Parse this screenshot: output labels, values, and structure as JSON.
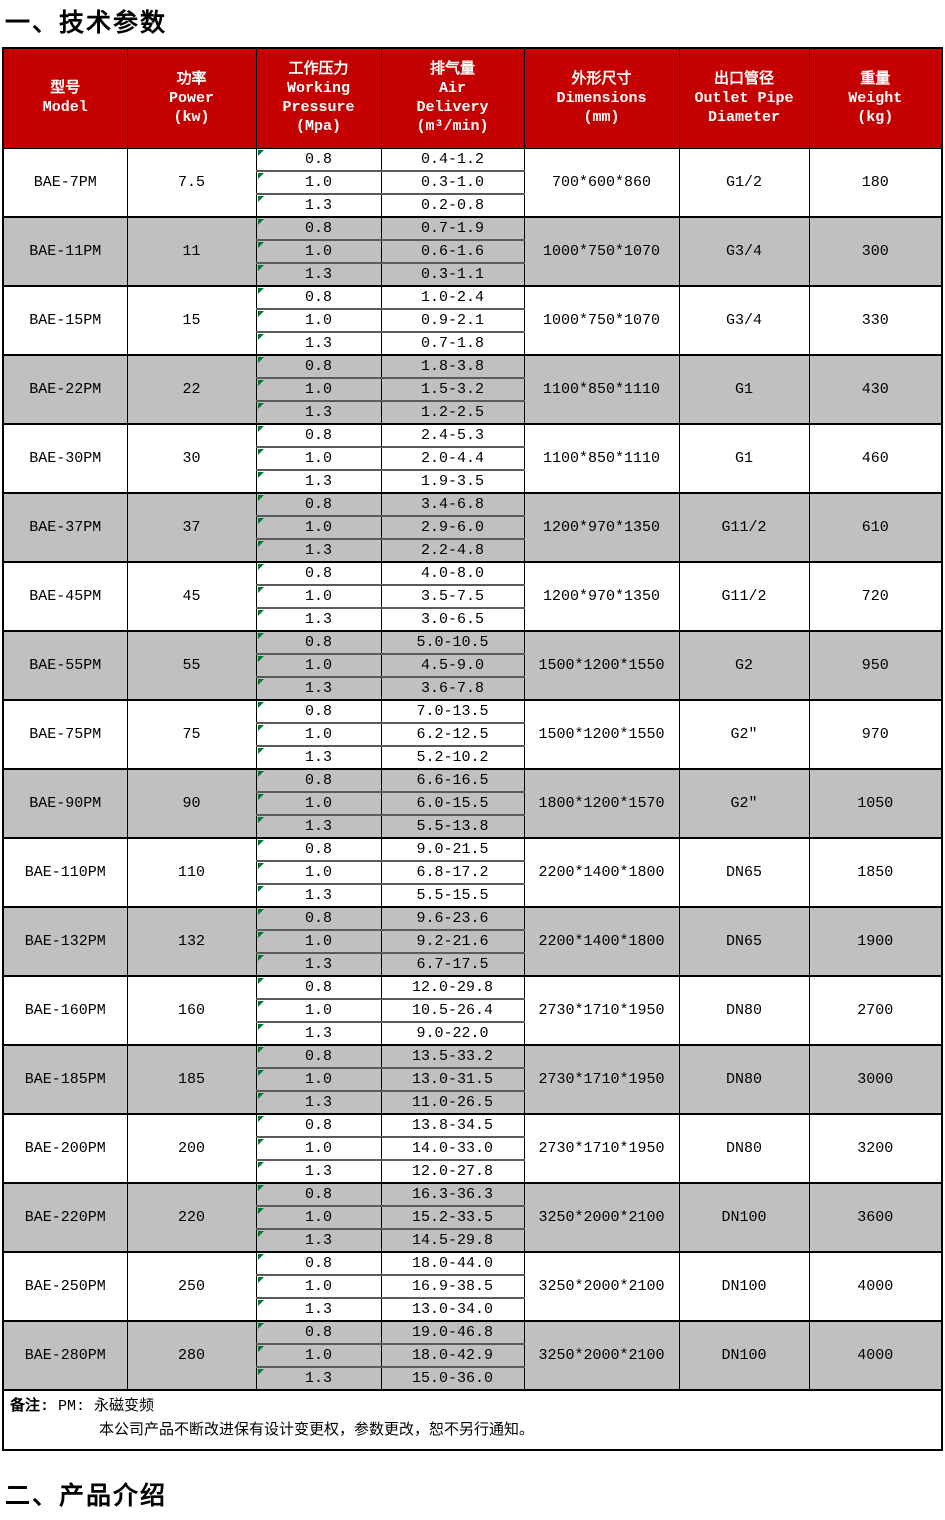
{
  "page": {
    "section1_title": "一、技术参数",
    "section2_title": "二、产品介绍"
  },
  "colors": {
    "header_bg": "#C40000",
    "header_text": "#FFFFFF",
    "alt_row_bg": "#C0C0C0",
    "marker_green": "#007A33",
    "border": "#000000"
  },
  "table": {
    "columns": [
      {
        "id": "model",
        "lines": [
          "型号",
          "Model"
        ]
      },
      {
        "id": "power",
        "lines": [
          "功率",
          "Power",
          "(kw)"
        ]
      },
      {
        "id": "pressure",
        "lines": [
          "工作压力",
          "Working",
          "Pressure",
          "(Mpa)"
        ]
      },
      {
        "id": "air",
        "lines": [
          "排气量",
          "Air",
          "Delivery",
          "(m³/min)"
        ]
      },
      {
        "id": "dimensions",
        "lines": [
          "外形尺寸",
          "Dimensions",
          "(mm)"
        ]
      },
      {
        "id": "outlet",
        "lines": [
          "出口管径",
          "Outlet Pipe",
          "Diameter"
        ]
      },
      {
        "id": "weight",
        "lines": [
          "重量",
          "Weight",
          "(kg)"
        ]
      }
    ],
    "rows": [
      {
        "model": "BAE-7PM",
        "power": "7.5",
        "dimensions": "700*600*860",
        "outlet": "G1/2",
        "weight": "180",
        "sub": [
          {
            "pressure": "0.8",
            "air": "0.4-1.2"
          },
          {
            "pressure": "1.0",
            "air": "0.3-1.0"
          },
          {
            "pressure": "1.3",
            "air": "0.2-0.8"
          }
        ]
      },
      {
        "model": "BAE-11PM",
        "power": "11",
        "dimensions": "1000*750*1070",
        "outlet": "G3/4",
        "weight": "300",
        "sub": [
          {
            "pressure": "0.8",
            "air": "0.7-1.9"
          },
          {
            "pressure": "1.0",
            "air": "0.6-1.6"
          },
          {
            "pressure": "1.3",
            "air": "0.3-1.1"
          }
        ]
      },
      {
        "model": "BAE-15PM",
        "power": "15",
        "dimensions": "1000*750*1070",
        "outlet": "G3/4",
        "weight": "330",
        "sub": [
          {
            "pressure": "0.8",
            "air": "1.0-2.4"
          },
          {
            "pressure": "1.0",
            "air": "0.9-2.1"
          },
          {
            "pressure": "1.3",
            "air": "0.7-1.8"
          }
        ]
      },
      {
        "model": "BAE-22PM",
        "power": "22",
        "dimensions": "1100*850*1110",
        "outlet": "G1",
        "weight": "430",
        "sub": [
          {
            "pressure": "0.8",
            "air": "1.8-3.8"
          },
          {
            "pressure": "1.0",
            "air": "1.5-3.2"
          },
          {
            "pressure": "1.3",
            "air": "1.2-2.5"
          }
        ]
      },
      {
        "model": "BAE-30PM",
        "power": "30",
        "dimensions": "1100*850*1110",
        "outlet": "G1",
        "weight": "460",
        "sub": [
          {
            "pressure": "0.8",
            "air": "2.4-5.3"
          },
          {
            "pressure": "1.0",
            "air": "2.0-4.4"
          },
          {
            "pressure": "1.3",
            "air": "1.9-3.5"
          }
        ]
      },
      {
        "model": "BAE-37PM",
        "power": "37",
        "dimensions": "1200*970*1350",
        "outlet": "G11/2",
        "weight": "610",
        "sub": [
          {
            "pressure": "0.8",
            "air": "3.4-6.8"
          },
          {
            "pressure": "1.0",
            "air": "2.9-6.0"
          },
          {
            "pressure": "1.3",
            "air": "2.2-4.8"
          }
        ]
      },
      {
        "model": "BAE-45PM",
        "power": "45",
        "dimensions": "1200*970*1350",
        "outlet": "G11/2",
        "weight": "720",
        "sub": [
          {
            "pressure": "0.8",
            "air": "4.0-8.0"
          },
          {
            "pressure": "1.0",
            "air": "3.5-7.5"
          },
          {
            "pressure": "1.3",
            "air": "3.0-6.5"
          }
        ]
      },
      {
        "model": "BAE-55PM",
        "power": "55",
        "dimensions": "1500*1200*1550",
        "outlet": "G2",
        "weight": "950",
        "sub": [
          {
            "pressure": "0.8",
            "air": "5.0-10.5"
          },
          {
            "pressure": "1.0",
            "air": "4.5-9.0"
          },
          {
            "pressure": "1.3",
            "air": "3.6-7.8"
          }
        ]
      },
      {
        "model": "BAE-75PM",
        "power": "75",
        "dimensions": "1500*1200*1550",
        "outlet": "G2″",
        "weight": "970",
        "sub": [
          {
            "pressure": "0.8",
            "air": "7.0-13.5"
          },
          {
            "pressure": "1.0",
            "air": "6.2-12.5"
          },
          {
            "pressure": "1.3",
            "air": "5.2-10.2"
          }
        ]
      },
      {
        "model": "BAE-90PM",
        "power": "90",
        "dimensions": "1800*1200*1570",
        "outlet": "G2″",
        "weight": "1050",
        "sub": [
          {
            "pressure": "0.8",
            "air": "6.6-16.5"
          },
          {
            "pressure": "1.0",
            "air": "6.0-15.5"
          },
          {
            "pressure": "1.3",
            "air": "5.5-13.8"
          }
        ]
      },
      {
        "model": "BAE-110PM",
        "power": "110",
        "dimensions": "2200*1400*1800",
        "outlet": "DN65",
        "weight": "1850",
        "sub": [
          {
            "pressure": "0.8",
            "air": "9.0-21.5"
          },
          {
            "pressure": "1.0",
            "air": "6.8-17.2"
          },
          {
            "pressure": "1.3",
            "air": "5.5-15.5"
          }
        ]
      },
      {
        "model": "BAE-132PM",
        "power": "132",
        "dimensions": "2200*1400*1800",
        "outlet": "DN65",
        "weight": "1900",
        "sub": [
          {
            "pressure": "0.8",
            "air": "9.6-23.6"
          },
          {
            "pressure": "1.0",
            "air": "9.2-21.6"
          },
          {
            "pressure": "1.3",
            "air": "6.7-17.5"
          }
        ]
      },
      {
        "model": "BAE-160PM",
        "power": "160",
        "dimensions": "2730*1710*1950",
        "outlet": "DN80",
        "weight": "2700",
        "sub": [
          {
            "pressure": "0.8",
            "air": "12.0-29.8"
          },
          {
            "pressure": "1.0",
            "air": "10.5-26.4"
          },
          {
            "pressure": "1.3",
            "air": "9.0-22.0"
          }
        ]
      },
      {
        "model": "BAE-185PM",
        "power": "185",
        "dimensions": "2730*1710*1950",
        "outlet": "DN80",
        "weight": "3000",
        "sub": [
          {
            "pressure": "0.8",
            "air": "13.5-33.2"
          },
          {
            "pressure": "1.0",
            "air": "13.0-31.5"
          },
          {
            "pressure": "1.3",
            "air": "11.0-26.5"
          }
        ]
      },
      {
        "model": "BAE-200PM",
        "power": "200",
        "dimensions": "2730*1710*1950",
        "outlet": "DN80",
        "weight": "3200",
        "sub": [
          {
            "pressure": "0.8",
            "air": "13.8-34.5"
          },
          {
            "pressure": "1.0",
            "air": "14.0-33.0"
          },
          {
            "pressure": "1.3",
            "air": "12.0-27.8"
          }
        ]
      },
      {
        "model": "BAE-220PM",
        "power": "220",
        "dimensions": "3250*2000*2100",
        "outlet": "DN100",
        "weight": "3600",
        "sub": [
          {
            "pressure": "0.8",
            "air": "16.3-36.3"
          },
          {
            "pressure": "1.0",
            "air": "15.2-33.5"
          },
          {
            "pressure": "1.3",
            "air": "14.5-29.8"
          }
        ]
      },
      {
        "model": "BAE-250PM",
        "power": "250",
        "dimensions": "3250*2000*2100",
        "outlet": "DN100",
        "weight": "4000",
        "sub": [
          {
            "pressure": "0.8",
            "air": "18.0-44.0"
          },
          {
            "pressure": "1.0",
            "air": "16.9-38.5"
          },
          {
            "pressure": "1.3",
            "air": "13.0-34.0"
          }
        ]
      },
      {
        "model": "BAE-280PM",
        "power": "280",
        "dimensions": "3250*2000*2100",
        "outlet": "DN100",
        "weight": "4000",
        "sub": [
          {
            "pressure": "0.8",
            "air": "19.0-46.8"
          },
          {
            "pressure": "1.0",
            "air": "18.0-42.9"
          },
          {
            "pressure": "1.3",
            "air": "15.0-36.0"
          }
        ]
      }
    ],
    "notes": {
      "label": "备注:",
      "line1": "PM: 永磁变频",
      "line2": "本公司产品不断改进保有设计变更权，参数更改，恕不另行通知。"
    }
  }
}
